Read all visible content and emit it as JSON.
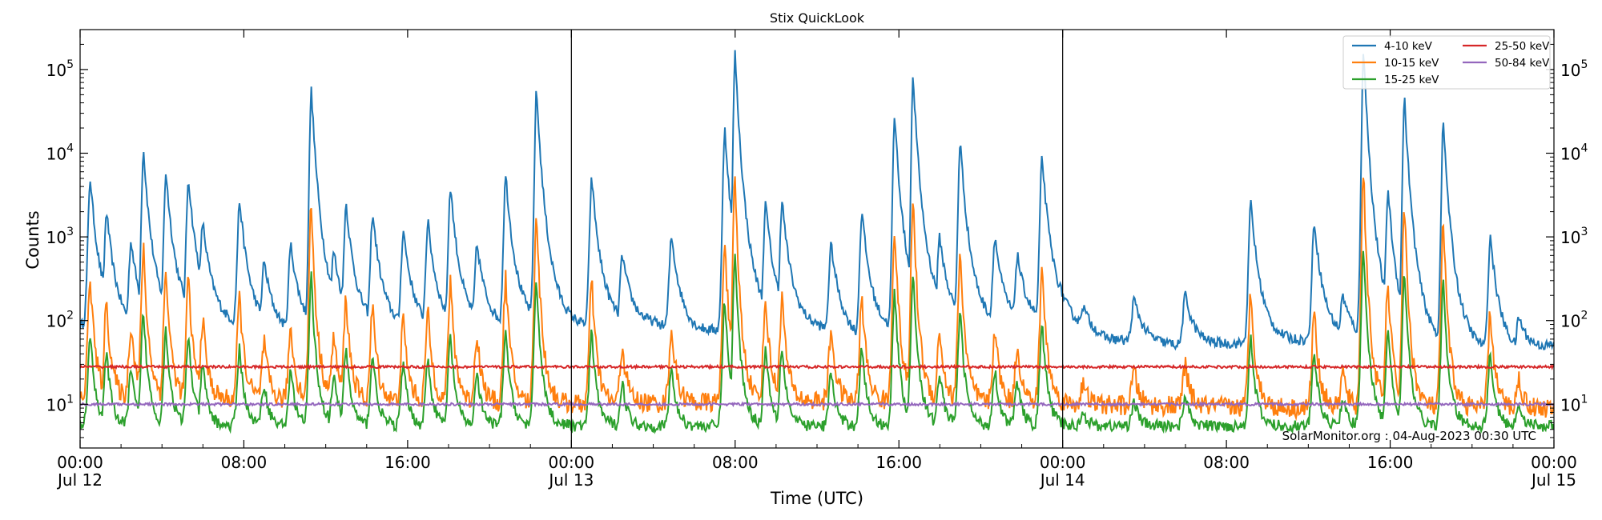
{
  "chart_data": {
    "type": "line",
    "title": "Stix QuickLook",
    "xlabel": "Time (UTC)",
    "ylabel": "Counts",
    "y_scale": "log",
    "ylim": [
      3,
      300000
    ],
    "xlim_hours": [
      0,
      72
    ],
    "x_ticks": [
      {
        "h": 0,
        "time": "00:00",
        "date": "Jul 12"
      },
      {
        "h": 8,
        "time": "08:00",
        "date": ""
      },
      {
        "h": 16,
        "time": "16:00",
        "date": ""
      },
      {
        "h": 24,
        "time": "00:00",
        "date": "Jul 13"
      },
      {
        "h": 32,
        "time": "08:00",
        "date": ""
      },
      {
        "h": 40,
        "time": "16:00",
        "date": ""
      },
      {
        "h": 48,
        "time": "00:00",
        "date": "Jul 14"
      },
      {
        "h": 56,
        "time": "08:00",
        "date": ""
      },
      {
        "h": 64,
        "time": "16:00",
        "date": ""
      },
      {
        "h": 72,
        "time": "00:00",
        "date": "Jul 15"
      }
    ],
    "y_ticks": [
      {
        "v": 10,
        "base": "10",
        "exp": "1"
      },
      {
        "v": 100,
        "base": "10",
        "exp": "2"
      },
      {
        "v": 1000,
        "base": "10",
        "exp": "3"
      },
      {
        "v": 10000,
        "base": "10",
        "exp": "4"
      },
      {
        "v": 100000,
        "base": "10",
        "exp": "5"
      }
    ],
    "day_boundaries_hours": [
      24,
      48
    ],
    "legend_position": "top-right",
    "annotation": "SolarMonitor.org : 04-Aug-2023 00:30 UTC",
    "series": [
      {
        "name": "4-10 keV",
        "color": "#1f77b4",
        "baseline": [
          [
            0,
            90
          ],
          [
            3,
            70
          ],
          [
            6,
            100
          ],
          [
            10,
            70
          ],
          [
            14,
            80
          ],
          [
            18,
            75
          ],
          [
            22,
            85
          ],
          [
            24,
            80
          ],
          [
            28,
            90
          ],
          [
            30,
            70
          ],
          [
            32,
            80
          ],
          [
            36,
            80
          ],
          [
            38,
            60
          ],
          [
            42,
            90
          ],
          [
            45,
            80
          ],
          [
            48,
            100
          ],
          [
            50,
            60
          ],
          [
            54,
            50
          ],
          [
            58,
            55
          ],
          [
            62,
            60
          ],
          [
            66,
            45
          ],
          [
            70,
            40
          ],
          [
            72,
            50
          ]
        ]
      },
      {
        "name": "10-15 keV",
        "color": "#ff7f0e",
        "baseline": [
          [
            0,
            12
          ],
          [
            12,
            11
          ],
          [
            24,
            10
          ],
          [
            36,
            11
          ],
          [
            48,
            10
          ],
          [
            60,
            9
          ],
          [
            72,
            9
          ]
        ]
      },
      {
        "name": "15-25 keV",
        "color": "#2ca02c",
        "baseline": [
          [
            0,
            5.5
          ],
          [
            24,
            5.5
          ],
          [
            48,
            5.5
          ],
          [
            72,
            5.5
          ]
        ]
      },
      {
        "name": "25-50 keV",
        "color": "#d62728",
        "baseline": [
          [
            0,
            28
          ],
          [
            72,
            28
          ]
        ]
      },
      {
        "name": "50-84 keV",
        "color": "#9467bd",
        "baseline": [
          [
            0,
            10
          ],
          [
            72,
            10
          ]
        ]
      }
    ],
    "flares": [
      {
        "t": 0.5,
        "peak": 5000
      },
      {
        "t": 1.3,
        "peak": 2000
      },
      {
        "t": 2.5,
        "peak": 900
      },
      {
        "t": 3.1,
        "peak": 11000
      },
      {
        "t": 4.2,
        "peak": 6000
      },
      {
        "t": 5.3,
        "peak": 5000
      },
      {
        "t": 6.0,
        "peak": 1500
      },
      {
        "t": 7.8,
        "peak": 2700
      },
      {
        "t": 9.0,
        "peak": 500
      },
      {
        "t": 10.3,
        "peak": 800
      },
      {
        "t": 11.3,
        "peak": 57000
      },
      {
        "t": 12.4,
        "peak": 700
      },
      {
        "t": 13.0,
        "peak": 2500
      },
      {
        "t": 14.3,
        "peak": 1900
      },
      {
        "t": 15.8,
        "peak": 1200
      },
      {
        "t": 17.0,
        "peak": 1500
      },
      {
        "t": 18.1,
        "peak": 4000
      },
      {
        "t": 19.4,
        "peak": 800
      },
      {
        "t": 20.8,
        "peak": 5500
      },
      {
        "t": 22.3,
        "peak": 56000
      },
      {
        "t": 25.0,
        "peak": 5000
      },
      {
        "t": 26.5,
        "peak": 600
      },
      {
        "t": 28.9,
        "peak": 1000
      },
      {
        "t": 31.5,
        "peak": 20000
      },
      {
        "t": 32.0,
        "peak": 155000
      },
      {
        "t": 33.5,
        "peak": 2500
      },
      {
        "t": 34.3,
        "peak": 2700
      },
      {
        "t": 36.7,
        "peak": 800
      },
      {
        "t": 38.2,
        "peak": 2000
      },
      {
        "t": 39.8,
        "peak": 28000
      },
      {
        "t": 40.7,
        "peak": 80000
      },
      {
        "t": 42.0,
        "peak": 1000
      },
      {
        "t": 43.0,
        "peak": 14000
      },
      {
        "t": 44.7,
        "peak": 1000
      },
      {
        "t": 45.8,
        "peak": 600
      },
      {
        "t": 47.0,
        "peak": 9000
      },
      {
        "t": 49.0,
        "peak": 150
      },
      {
        "t": 51.5,
        "peak": 180
      },
      {
        "t": 54.0,
        "peak": 200
      },
      {
        "t": 57.2,
        "peak": 2600
      },
      {
        "t": 60.3,
        "peak": 1500
      },
      {
        "t": 61.7,
        "peak": 200
      },
      {
        "t": 62.7,
        "peak": 180000
      },
      {
        "t": 63.9,
        "peak": 3600
      },
      {
        "t": 64.7,
        "peak": 46000
      },
      {
        "t": 66.6,
        "peak": 23000
      },
      {
        "t": 68.9,
        "peak": 1000
      },
      {
        "t": 70.3,
        "peak": 110
      }
    ]
  }
}
